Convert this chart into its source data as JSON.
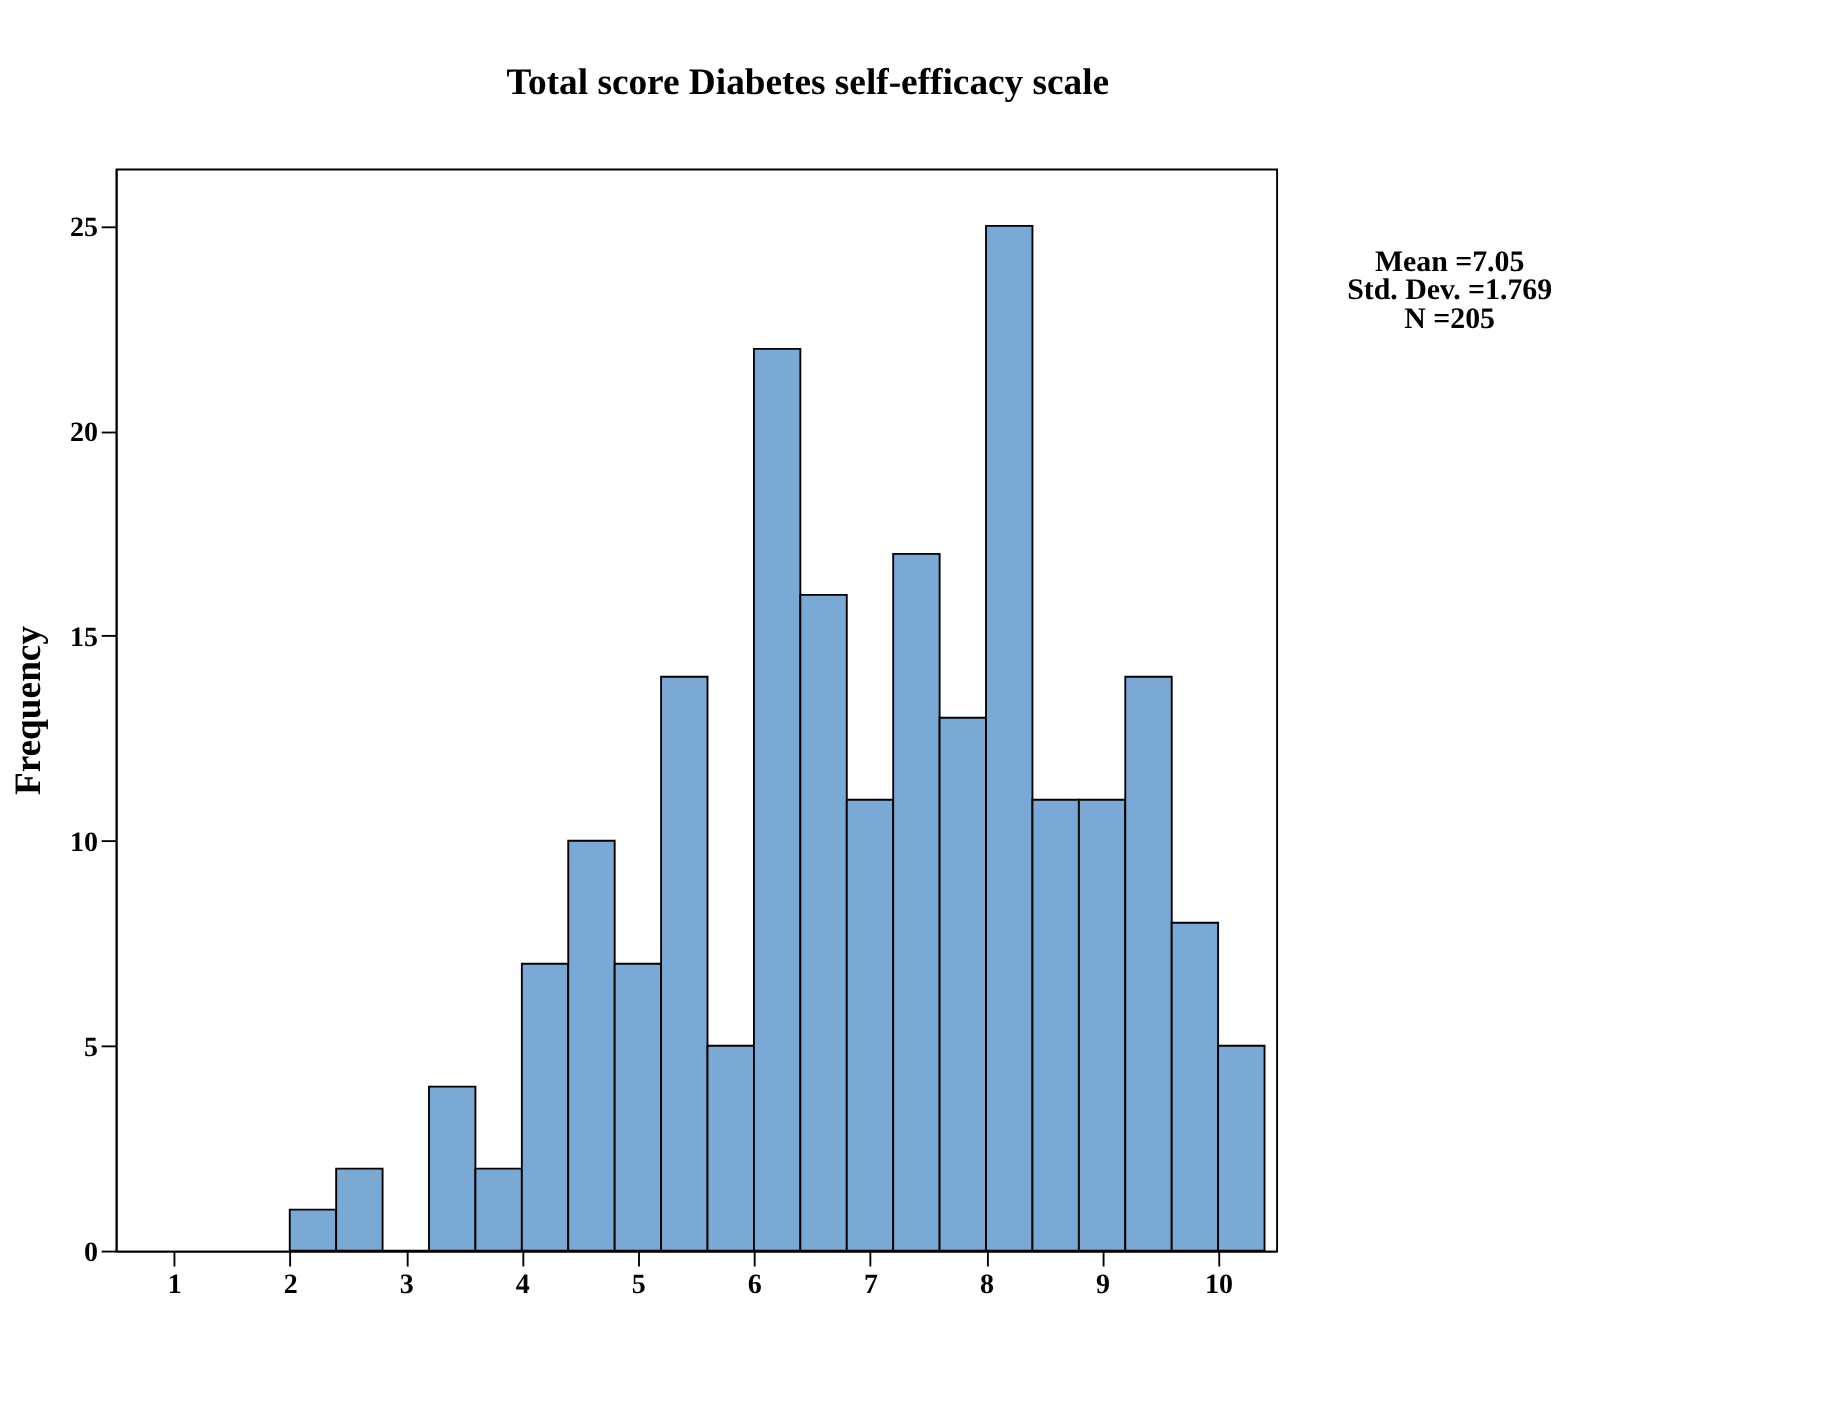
{
  "chart_data": {
    "type": "histogram",
    "title": "Total score Diabetes self-efficacy scale",
    "ylabel": "Frequency",
    "bins": [
      2.0,
      2.4,
      2.8,
      3.2,
      3.6,
      4.0,
      4.4,
      4.8,
      5.2,
      5.6,
      6.0,
      6.4,
      6.8,
      7.2,
      7.6,
      8.0,
      8.4,
      8.8,
      9.2,
      9.6,
      10.0,
      10.4
    ],
    "values": [
      1,
      2,
      0,
      4,
      2,
      7,
      10,
      7,
      14,
      5,
      22,
      16,
      11,
      17,
      13,
      25,
      11,
      11,
      14,
      8,
      5
    ],
    "color": "#7ba9d6",
    "xlim": [
      0.5,
      10.5
    ],
    "xticks": [
      1,
      2,
      3,
      4,
      5,
      6,
      7,
      8,
      9,
      10
    ],
    "ylim": [
      0,
      26.4
    ],
    "yticks": [
      0,
      5,
      10,
      15,
      20,
      25
    ],
    "grid": false,
    "annotations": [
      "Mean =7.05",
      "Std. Dev. =1.769",
      "N =205"
    ]
  }
}
